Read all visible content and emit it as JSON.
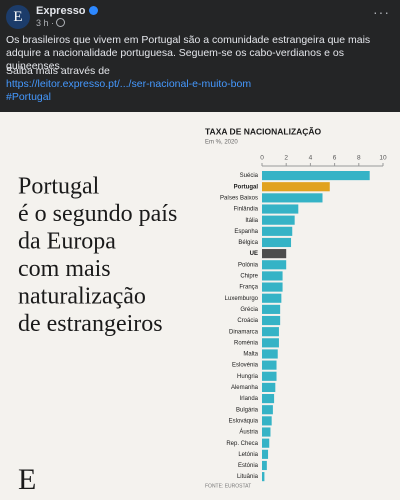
{
  "post": {
    "author": "Expresso",
    "time": "3 h ·",
    "text": "Os brasileiros que vivem em Portugal são a comunidade estrangeira que mais adquire a nacionalidade portuguesa. Seguem-se os cabo-verdianos e os guineenses.",
    "link_intro": "Saiba mais através de",
    "link": "https://leitor.expresso.pt/.../ser-nacional-e-muito-bom",
    "hashtag": "#Portugal"
  },
  "image": {
    "headline": [
      "Portugal",
      "é o segundo país",
      "da Europa",
      "com mais",
      "naturalização",
      "de estrangeiros"
    ],
    "logo": "E",
    "chart": {
      "type": "bar",
      "orientation": "horizontal",
      "title": "TAXA DE NACIONALIZAÇÃO",
      "subtitle": "Em %, 2020",
      "source": "FONTE: EUROSTAT",
      "categories": [
        "Suécia",
        "Portugal",
        "Países Baixos",
        "Finlândia",
        "Itália",
        "Espanha",
        "Bélgica",
        "UE",
        "Polónia",
        "Chipre",
        "França",
        "Luxemburgo",
        "Grécia",
        "Croácia",
        "Dinamarca",
        "Roménia",
        "Malta",
        "Eslovénia",
        "Hungria",
        "Alemanha",
        "Irlanda",
        "Bulgária",
        "Eslováquia",
        "Áustria",
        "Rep. Checa",
        "Letónia",
        "Estónia",
        "Lituânia"
      ],
      "values": [
        8.9,
        5.6,
        5.0,
        3.0,
        2.7,
        2.5,
        2.4,
        2.0,
        2.0,
        1.7,
        1.7,
        1.6,
        1.5,
        1.5,
        1.4,
        1.4,
        1.3,
        1.2,
        1.2,
        1.1,
        1.0,
        0.9,
        0.8,
        0.7,
        0.6,
        0.5,
        0.4,
        0.2
      ],
      "color": "#35b3c6",
      "colors": [
        "#35b3c6",
        "#e1a21f",
        "#35b3c6",
        "#35b3c6",
        "#35b3c6",
        "#35b3c6",
        "#35b3c6",
        "#4d4d4d",
        "#35b3c6",
        "#35b3c6",
        "#35b3c6",
        "#35b3c6",
        "#35b3c6",
        "#35b3c6",
        "#35b3c6",
        "#35b3c6",
        "#35b3c6",
        "#35b3c6",
        "#35b3c6",
        "#35b3c6",
        "#35b3c6",
        "#35b3c6",
        "#35b3c6",
        "#35b3c6",
        "#35b3c6",
        "#35b3c6",
        "#35b3c6",
        "#35b3c6"
      ],
      "xlim": [
        0,
        10
      ],
      "xticks": [
        0,
        2,
        4,
        6,
        8,
        10
      ]
    }
  }
}
